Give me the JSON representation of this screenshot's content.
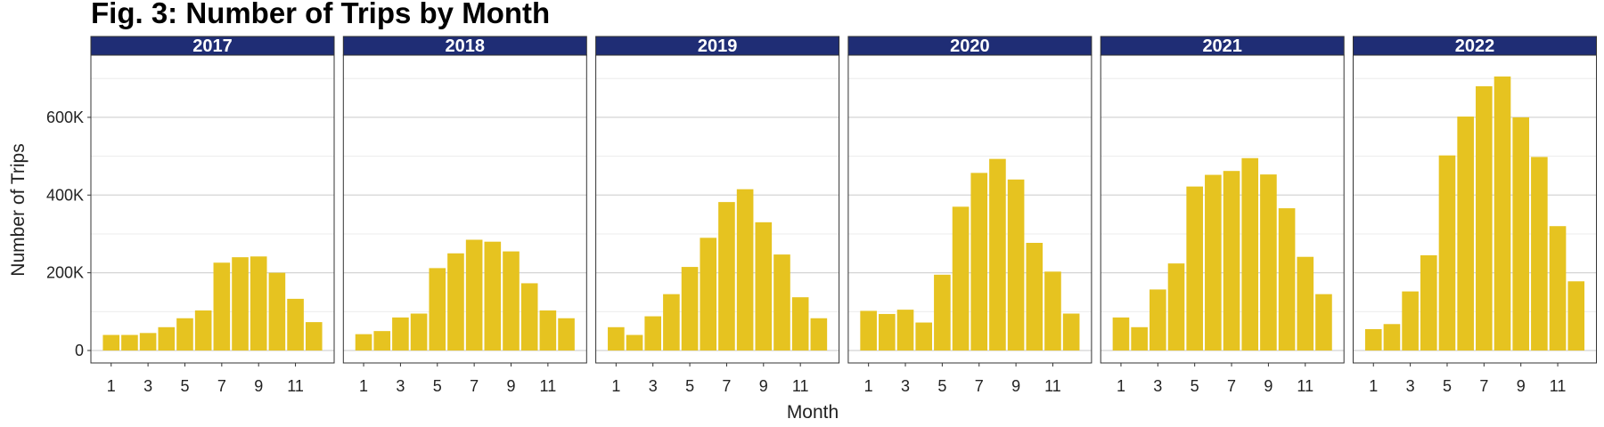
{
  "chart_data": {
    "type": "bar",
    "title": "Fig. 3: Number of Trips by Month",
    "xlabel": "Month",
    "ylabel": "Number of Trips",
    "ylim": [
      0,
      760000
    ],
    "y_ticks": [
      0,
      200000,
      400000,
      600000
    ],
    "y_tick_labels": [
      "0",
      "200K",
      "400K",
      "600K"
    ],
    "x_tick_labels": [
      "1",
      "3",
      "5",
      "7",
      "9",
      "11"
    ],
    "categories": [
      1,
      2,
      3,
      4,
      5,
      6,
      7,
      8,
      9,
      10,
      11,
      12
    ],
    "grid": true,
    "bar_color": "#E6C320",
    "strip_color": "#1F2D75",
    "facets": [
      {
        "label": "2017",
        "values": [
          40000,
          40000,
          45000,
          60000,
          83000,
          103000,
          226000,
          240000,
          242000,
          200000,
          133000,
          73000
        ]
      },
      {
        "label": "2018",
        "values": [
          42000,
          50000,
          85000,
          95000,
          212000,
          250000,
          285000,
          280000,
          255000,
          173000,
          103000,
          83000
        ]
      },
      {
        "label": "2019",
        "values": [
          60000,
          40000,
          88000,
          145000,
          215000,
          290000,
          382000,
          415000,
          330000,
          247000,
          137000,
          83000
        ]
      },
      {
        "label": "2020",
        "values": [
          102000,
          94000,
          105000,
          72000,
          195000,
          370000,
          457000,
          493000,
          440000,
          277000,
          203000,
          95000
        ]
      },
      {
        "label": "2021",
        "values": [
          85000,
          60000,
          157000,
          224000,
          422000,
          452000,
          462000,
          495000,
          453000,
          366000,
          241000,
          145000
        ]
      },
      {
        "label": "2022",
        "values": [
          55000,
          68000,
          152000,
          245000,
          502000,
          602000,
          680000,
          705000,
          600000,
          498000,
          320000,
          178000
        ]
      }
    ]
  }
}
